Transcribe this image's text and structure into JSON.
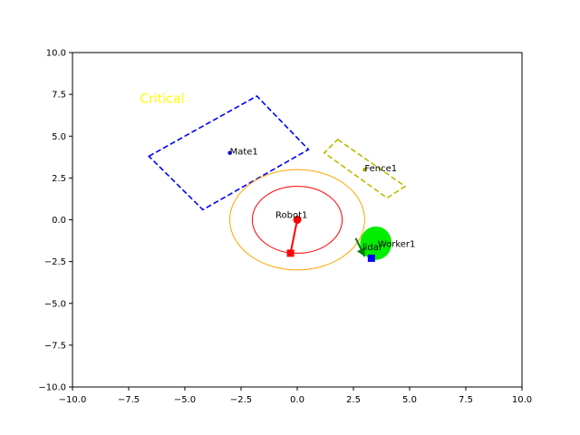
{
  "chart_data": {
    "type": "scatter",
    "title": "",
    "xlabel": "",
    "ylabel": "",
    "xlim": [
      -10,
      10
    ],
    "ylim": [
      -10,
      10
    ],
    "grid": false,
    "x_ticks": [
      -10,
      -7.5,
      -5,
      -2.5,
      0,
      2.5,
      5,
      7.5,
      10
    ],
    "y_ticks": [
      -10,
      -7.5,
      -5,
      -2.5,
      0,
      2.5,
      5,
      7.5,
      10
    ],
    "x_tick_labels": [
      "−10.0",
      "−7.5",
      "−5.0",
      "−2.5",
      "0.0",
      "2.5",
      "5.0",
      "7.5",
      "10.0"
    ],
    "y_tick_labels": [
      "−10.0",
      "−7.5",
      "−5.0",
      "−2.5",
      "0.0",
      "2.5",
      "5.0",
      "7.5",
      "10.0"
    ],
    "status_text": {
      "text": "Critical",
      "x": -7.0,
      "y": 7.0,
      "color": "#ffff00"
    },
    "safety_circles": [
      {
        "name": "inner",
        "center": [
          0,
          0
        ],
        "radius": 2.0,
        "color": "#ff0000"
      },
      {
        "name": "outer",
        "center": [
          0,
          0
        ],
        "radius": 3.0,
        "color": "#ffa500"
      }
    ],
    "zones": [
      {
        "name": "mate-zone",
        "points": [
          [
            -6.6,
            3.8
          ],
          [
            -1.8,
            7.4
          ],
          [
            0.5,
            4.2
          ],
          [
            -4.2,
            0.6
          ]
        ],
        "color": "#0000ff"
      },
      {
        "name": "fence-zone",
        "points": [
          [
            1.8,
            4.8
          ],
          [
            4.8,
            2.0
          ],
          [
            4.0,
            1.3
          ],
          [
            1.2,
            4.0
          ]
        ],
        "color": "#bbbb00"
      }
    ],
    "robot": {
      "label": "Robot1",
      "base": [
        0,
        0
      ],
      "end_effector": [
        -0.3,
        -2.0
      ],
      "color": "#ff0000"
    },
    "workers": [
      {
        "label": "Worker1",
        "position": [
          3.5,
          -1.4
        ],
        "rx": 0.7,
        "ry": 1.0,
        "color": "#00ee00"
      }
    ],
    "mates": [
      {
        "label": "Mate1",
        "position": [
          -3.0,
          4.0
        ],
        "color": "#0000ff"
      }
    ],
    "fences": [
      {
        "label": "Fence1",
        "position": [
          3.0,
          3.0
        ],
        "color": "#aaaa00"
      }
    ],
    "lidar": {
      "label": "lidar",
      "position": [
        3.3,
        -2.3
      ],
      "color": "#0000ff",
      "arrow_from": [
        2.6,
        -1.1
      ],
      "arrow_to": [
        3.0,
        -2.2
      ],
      "arrow_color": "#008000"
    }
  }
}
